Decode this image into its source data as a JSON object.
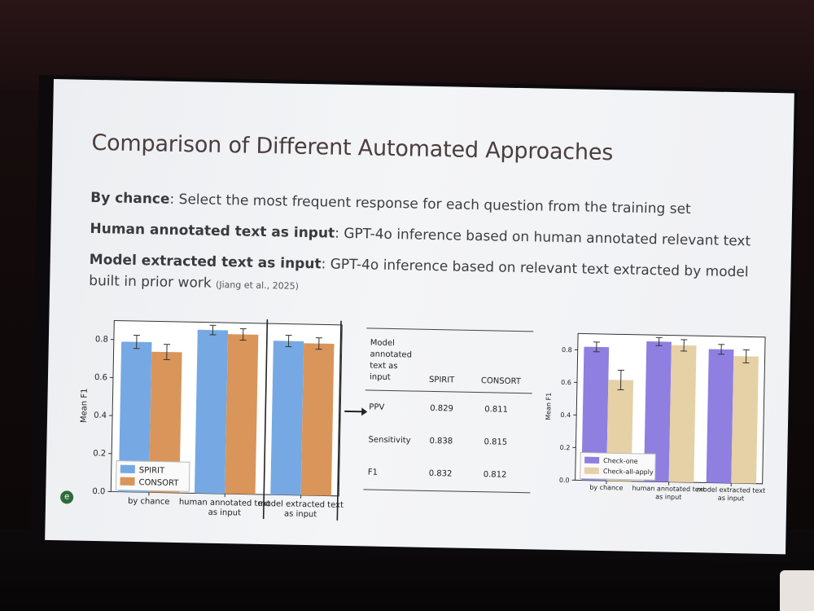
{
  "slide": {
    "title": "Comparison of Different Automated Approaches",
    "bullets": [
      {
        "term": "By chance",
        "text": ": Select the most frequent response for each question from the training set"
      },
      {
        "term": "Human annotated text as input",
        "text": ": GPT-4o inference based on human annotated relevant text"
      },
      {
        "term": "Model extracted text as input",
        "text": ": GPT-4o inference based on relevant text extracted by model built in prior work",
        "cite": "(Jiang et al., 2025)"
      }
    ]
  },
  "table": {
    "header": [
      "Model annotated text as input",
      "SPIRIT",
      "CONSORT"
    ],
    "rows": [
      [
        "PPV",
        "0.829",
        "0.811"
      ],
      [
        "Sensitivity",
        "0.838",
        "0.815"
      ],
      [
        "F1",
        "0.832",
        "0.812"
      ]
    ]
  },
  "colors": {
    "spirit": "#76a9e3",
    "consort": "#d9955a",
    "check_one": "#8e7fe0",
    "check_all": "#e6d0a6"
  },
  "chart_data": [
    {
      "type": "bar",
      "categories": [
        "by chance",
        "human annotated text as input",
        "model extracted text as input"
      ],
      "series": [
        {
          "name": "SPIRIT",
          "values": [
            0.79,
            0.86,
            0.81
          ],
          "err": [
            0.035,
            0.025,
            0.03
          ]
        },
        {
          "name": "CONSORT",
          "values": [
            0.74,
            0.84,
            0.8
          ],
          "err": [
            0.04,
            0.03,
            0.03
          ]
        }
      ],
      "ylabel": "Mean F1",
      "ylim": [
        0.0,
        0.9
      ],
      "yticks": [
        "0.0",
        "0.2",
        "0.4",
        "0.6",
        "0.8"
      ],
      "legend": "bottom-left",
      "highlight_category": "model extracted text as input"
    },
    {
      "type": "bar",
      "categories": [
        "by chance",
        "human annotated text as input",
        "model extracted text as input"
      ],
      "series": [
        {
          "name": "Check-one",
          "values": [
            0.82,
            0.86,
            0.82
          ],
          "err": [
            0.03,
            0.025,
            0.03
          ]
        },
        {
          "name": "Check-all-apply",
          "values": [
            0.62,
            0.84,
            0.78
          ],
          "err": [
            0.06,
            0.035,
            0.04
          ]
        }
      ],
      "ylabel": "Mean F1",
      "ylim": [
        0.0,
        0.9
      ],
      "yticks": [
        "0.0",
        "0.2",
        "0.4",
        "0.6",
        "0.8"
      ],
      "legend": "bottom-left"
    }
  ]
}
